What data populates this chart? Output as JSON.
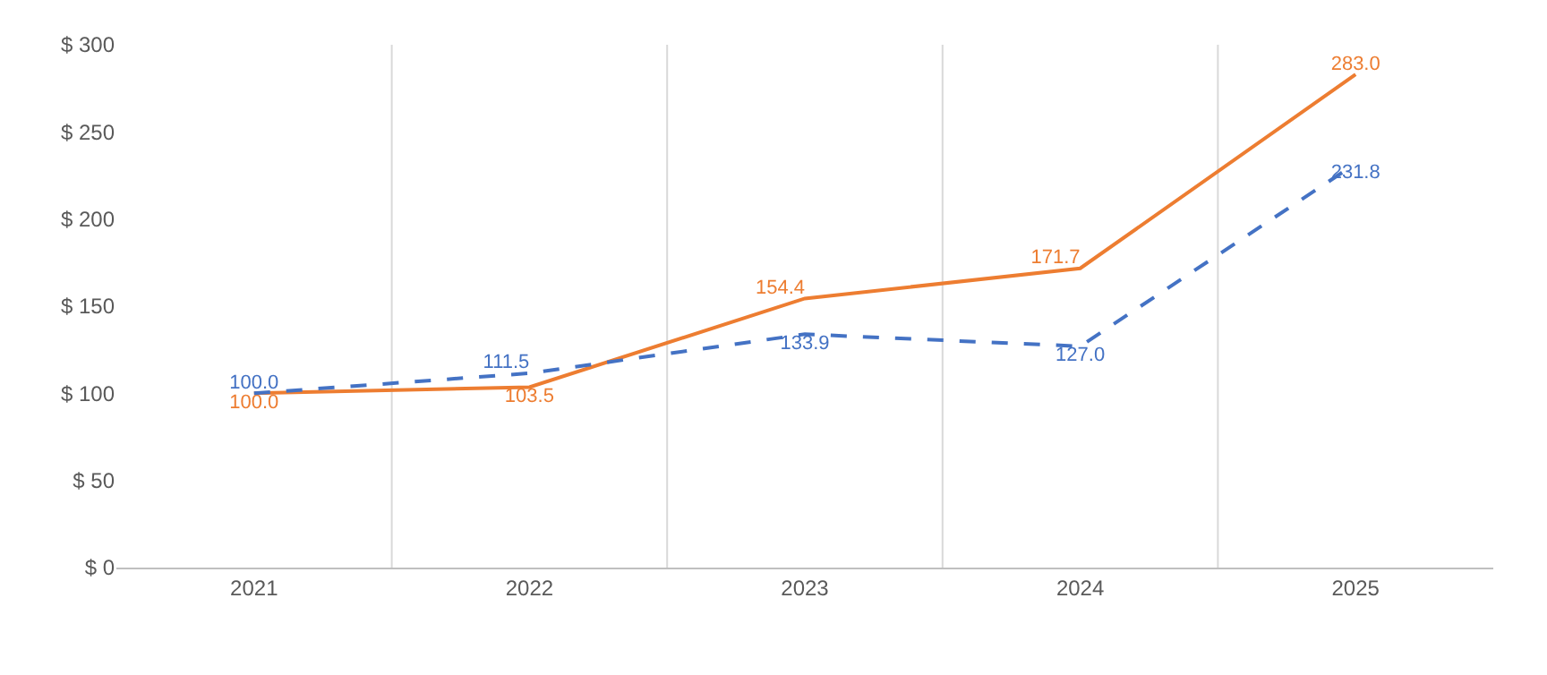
{
  "chart_data": {
    "type": "line",
    "categories": [
      "2021",
      "2022",
      "2023",
      "2024",
      "2025"
    ],
    "series": [
      {
        "color": "#ed7d31",
        "line_style": "solid",
        "values": [
          100.0,
          103.5,
          154.4,
          171.7,
          283.0
        ],
        "value_labels": [
          "100.0",
          "103.5",
          "154.4",
          "171.7",
          "283.0"
        ]
      },
      {
        "color": "#4472c4",
        "line_style": "dashed",
        "values": [
          100.0,
          111.5,
          133.9,
          127.0,
          231.8
        ],
        "value_labels": [
          "100.0",
          "111.5",
          "133.9",
          "127.0",
          "231.8"
        ]
      }
    ],
    "ylim": [
      0,
      300
    ],
    "yticks": [
      {
        "value": 0,
        "label": "$ 0"
      },
      {
        "value": 50,
        "label": "$ 50"
      },
      {
        "value": 100,
        "label": "$ 100"
      },
      {
        "value": 150,
        "label": "$ 150"
      },
      {
        "value": 200,
        "label": "$ 200"
      },
      {
        "value": 250,
        "label": "$ 250"
      },
      {
        "value": 300,
        "label": "$ 300"
      }
    ],
    "grid": "x",
    "marker": "none"
  }
}
